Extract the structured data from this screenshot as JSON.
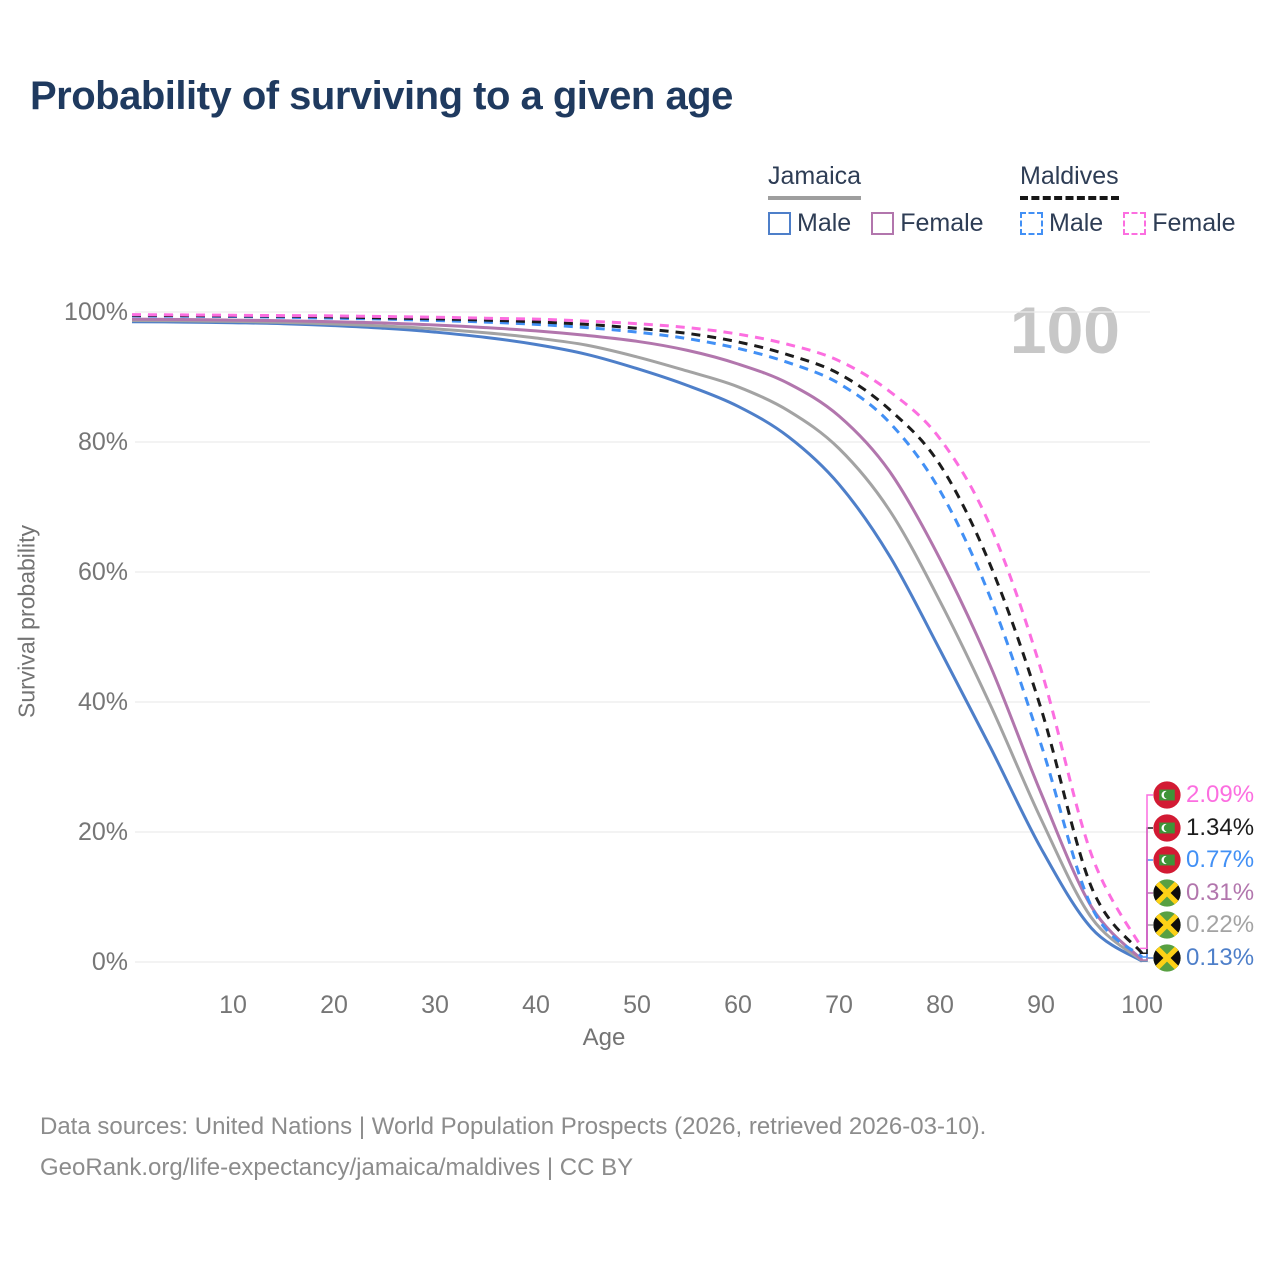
{
  "title": "Probability of surviving to a given age",
  "watermark_age": "100",
  "legend": {
    "groups": [
      {
        "name": "Jamaica",
        "line_style": "solid",
        "underline_color": "#9e9e9e",
        "items": [
          {
            "label": "Male",
            "color": "#4e7fc9",
            "dashed": false
          },
          {
            "label": "Female",
            "color": "#b276ad",
            "dashed": false
          }
        ]
      },
      {
        "name": "Maldives",
        "line_style": "dashed",
        "underline_color": "#161616",
        "items": [
          {
            "label": "Male",
            "color": "#4290f5",
            "dashed": true
          },
          {
            "label": "Female",
            "color": "#fc6ee0",
            "dashed": true
          }
        ]
      }
    ]
  },
  "chart_data": {
    "type": "line",
    "title": "Probability of surviving to a given age",
    "xlabel": "Age",
    "ylabel": "Survival probability",
    "x_ticks": [
      10,
      20,
      30,
      40,
      50,
      60,
      70,
      80,
      90,
      100
    ],
    "y_ticks": [
      "0%",
      "20%",
      "40%",
      "60%",
      "80%",
      "100%"
    ],
    "xlim": [
      0,
      100
    ],
    "ylim": [
      0,
      100
    ],
    "grid": "horizontal",
    "legend_position": "top-right",
    "age_marker": "100",
    "ages": [
      0,
      5,
      10,
      15,
      20,
      25,
      30,
      35,
      40,
      45,
      50,
      55,
      60,
      65,
      70,
      75,
      80,
      85,
      90,
      95,
      100
    ],
    "series": [
      {
        "name": "Jamaica Male",
        "country": "Jamaica",
        "sex": "Male",
        "style": "solid",
        "color": "#4e7fc9",
        "end_label": "0.13%",
        "values": [
          98.5,
          98.45,
          98.35,
          98.2,
          97.9,
          97.5,
          96.9,
          96.1,
          95.0,
          93.5,
          91.3,
          88.7,
          85.5,
          80.8,
          73.5,
          62.5,
          48.0,
          33.0,
          17.5,
          5.2,
          0.13
        ]
      },
      {
        "name": "Jamaica",
        "country": "Jamaica",
        "sex": "Both",
        "style": "solid",
        "color": "#a3a3a3",
        "end_label": "0.22%",
        "values": [
          98.7,
          98.65,
          98.55,
          98.4,
          98.15,
          97.85,
          97.4,
          96.8,
          96.0,
          94.9,
          93.1,
          90.9,
          88.5,
          84.8,
          79.0,
          69.5,
          55.5,
          39.5,
          22.0,
          6.8,
          0.22
        ]
      },
      {
        "name": "Jamaica Female",
        "country": "Jamaica",
        "sex": "Female",
        "style": "solid",
        "color": "#b276ad",
        "end_label": "0.31%",
        "values": [
          98.9,
          98.85,
          98.75,
          98.65,
          98.5,
          98.3,
          98.0,
          97.6,
          97.1,
          96.4,
          95.5,
          94.1,
          92.0,
          89.0,
          84.0,
          75.5,
          62.0,
          45.5,
          26.0,
          8.5,
          0.31
        ]
      },
      {
        "name": "Maldives Male",
        "country": "Maldives",
        "sex": "Male",
        "style": "dashed",
        "color": "#4290f5",
        "end_label": "0.77%",
        "values": [
          99.4,
          99.35,
          99.3,
          99.2,
          99.05,
          98.9,
          98.7,
          98.45,
          98.1,
          97.6,
          96.9,
          95.9,
          94.4,
          92.2,
          89.0,
          83.0,
          72.5,
          56.0,
          33.5,
          8.5,
          0.77
        ]
      },
      {
        "name": "Maldives",
        "country": "Maldives",
        "sex": "Both",
        "style": "dashed",
        "color": "#1c1c1c",
        "end_label": "1.34%",
        "values": [
          99.5,
          99.45,
          99.4,
          99.35,
          99.25,
          99.1,
          98.95,
          98.75,
          98.5,
          98.1,
          97.5,
          96.7,
          95.4,
          93.4,
          90.5,
          85.0,
          76.5,
          61.0,
          39.0,
          11.5,
          1.34
        ]
      },
      {
        "name": "Maldives Female",
        "country": "Maldives",
        "sex": "Female",
        "style": "dashed",
        "color": "#fc6ee0",
        "end_label": "2.09%",
        "values": [
          99.6,
          99.55,
          99.5,
          99.45,
          99.4,
          99.3,
          99.2,
          99.05,
          98.9,
          98.6,
          98.2,
          97.6,
          96.6,
          95.0,
          92.5,
          87.8,
          80.5,
          67.0,
          45.0,
          16.5,
          2.09
        ]
      }
    ]
  },
  "footer": {
    "line1": "Data sources: United Nations | World Population Prospects (2026, retrieved 2026-03-10).",
    "line2": "GeoRank.org/life-expectancy/jamaica/maldives | CC BY"
  }
}
